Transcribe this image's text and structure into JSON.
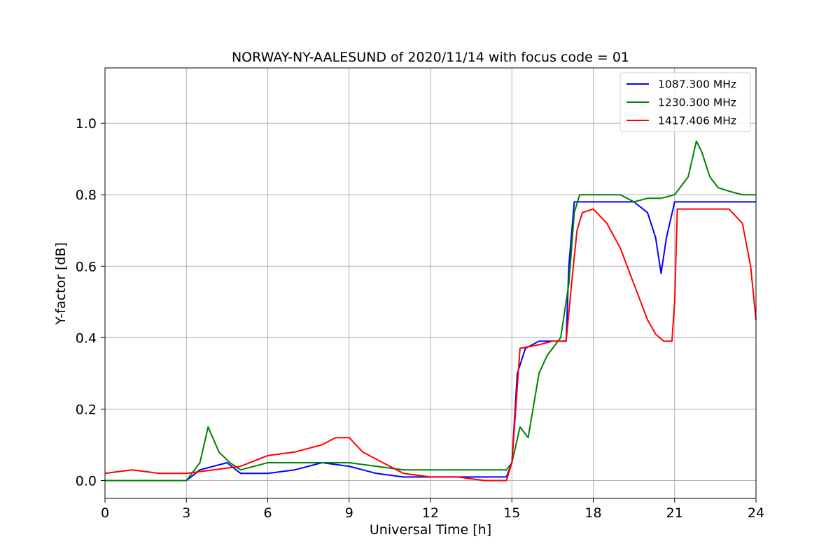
{
  "chart_data": {
    "type": "line",
    "title": "NORWAY-NY-AALESUND of 2020/11/14 with focus code = 01",
    "xlabel": "Universal Time [h]",
    "ylabel": "Y-factor [dB]",
    "xlim": [
      0,
      24
    ],
    "ylim": [
      -0.05,
      1.155
    ],
    "xticks": [
      0,
      3,
      6,
      9,
      12,
      15,
      18,
      21,
      24
    ],
    "xtick_labels": [
      "0",
      "3",
      "6",
      "9",
      "12",
      "15",
      "18",
      "21",
      "24"
    ],
    "yticks": [
      0.0,
      0.2,
      0.4,
      0.6,
      0.8,
      1.0
    ],
    "ytick_labels": [
      "0.0",
      "0.2",
      "0.4",
      "0.6",
      "0.8",
      "1.0"
    ],
    "grid": true,
    "legend_position": "top-right",
    "series": [
      {
        "name": "1087.300 MHz",
        "color": "#0000ff",
        "x": [
          0,
          3,
          3.5,
          4.5,
          5,
          6,
          7,
          8,
          9,
          10,
          11,
          12,
          13,
          13.5,
          14.8,
          15.0,
          15.2,
          15.5,
          16.0,
          16.5,
          17.0,
          17.1,
          17.3,
          18,
          19,
          19.5,
          20.0,
          20.3,
          20.5,
          20.7,
          21.0,
          22,
          23,
          24
        ],
        "y": [
          0.0,
          0.0,
          0.03,
          0.05,
          0.02,
          0.02,
          0.03,
          0.05,
          0.04,
          0.02,
          0.01,
          0.01,
          0.01,
          0.01,
          0.01,
          0.05,
          0.3,
          0.37,
          0.39,
          0.39,
          0.39,
          0.6,
          0.78,
          0.78,
          0.78,
          0.78,
          0.75,
          0.68,
          0.58,
          0.68,
          0.78,
          0.78,
          0.78,
          0.78
        ]
      },
      {
        "name": "1230.300 MHz",
        "color": "#008000",
        "x": [
          0,
          3,
          3.5,
          3.8,
          4.2,
          4.6,
          5,
          6,
          7,
          8,
          9,
          10,
          11,
          12,
          12.5,
          14.8,
          15.0,
          15.3,
          15.6,
          16.0,
          16.3,
          16.6,
          16.8,
          17.1,
          17.3,
          17.5,
          18,
          19,
          19.5,
          20.0,
          20.5,
          21.0,
          21.5,
          21.8,
          22.0,
          22.3,
          22.6,
          23,
          23.5,
          24
        ],
        "y": [
          0.0,
          0.0,
          0.05,
          0.15,
          0.08,
          0.05,
          0.03,
          0.05,
          0.05,
          0.05,
          0.05,
          0.04,
          0.03,
          0.03,
          0.03,
          0.03,
          0.05,
          0.15,
          0.12,
          0.3,
          0.35,
          0.38,
          0.4,
          0.55,
          0.75,
          0.8,
          0.8,
          0.8,
          0.78,
          0.79,
          0.79,
          0.8,
          0.85,
          0.95,
          0.92,
          0.85,
          0.82,
          0.81,
          0.8,
          0.8
        ]
      },
      {
        "name": "1417.406 MHz",
        "color": "#ff0000",
        "x": [
          0,
          1,
          2,
          3,
          4,
          5,
          6,
          7,
          8,
          8.5,
          9,
          9.5,
          10,
          10.5,
          11,
          12,
          13,
          14,
          14.8,
          15.0,
          15.3,
          16.0,
          16.5,
          17.0,
          17.2,
          17.4,
          17.6,
          18,
          18.5,
          19,
          19.5,
          20.0,
          20.3,
          20.6,
          20.9,
          21.0,
          21.1,
          22,
          23,
          23.5,
          23.8,
          24
        ],
        "y": [
          0.02,
          0.03,
          0.02,
          0.02,
          0.03,
          0.04,
          0.07,
          0.08,
          0.1,
          0.12,
          0.12,
          0.08,
          0.06,
          0.04,
          0.02,
          0.01,
          0.01,
          0.0,
          0.0,
          0.05,
          0.37,
          0.38,
          0.39,
          0.39,
          0.55,
          0.7,
          0.75,
          0.76,
          0.72,
          0.65,
          0.55,
          0.45,
          0.41,
          0.39,
          0.39,
          0.5,
          0.76,
          0.76,
          0.76,
          0.72,
          0.6,
          0.45
        ]
      }
    ]
  }
}
